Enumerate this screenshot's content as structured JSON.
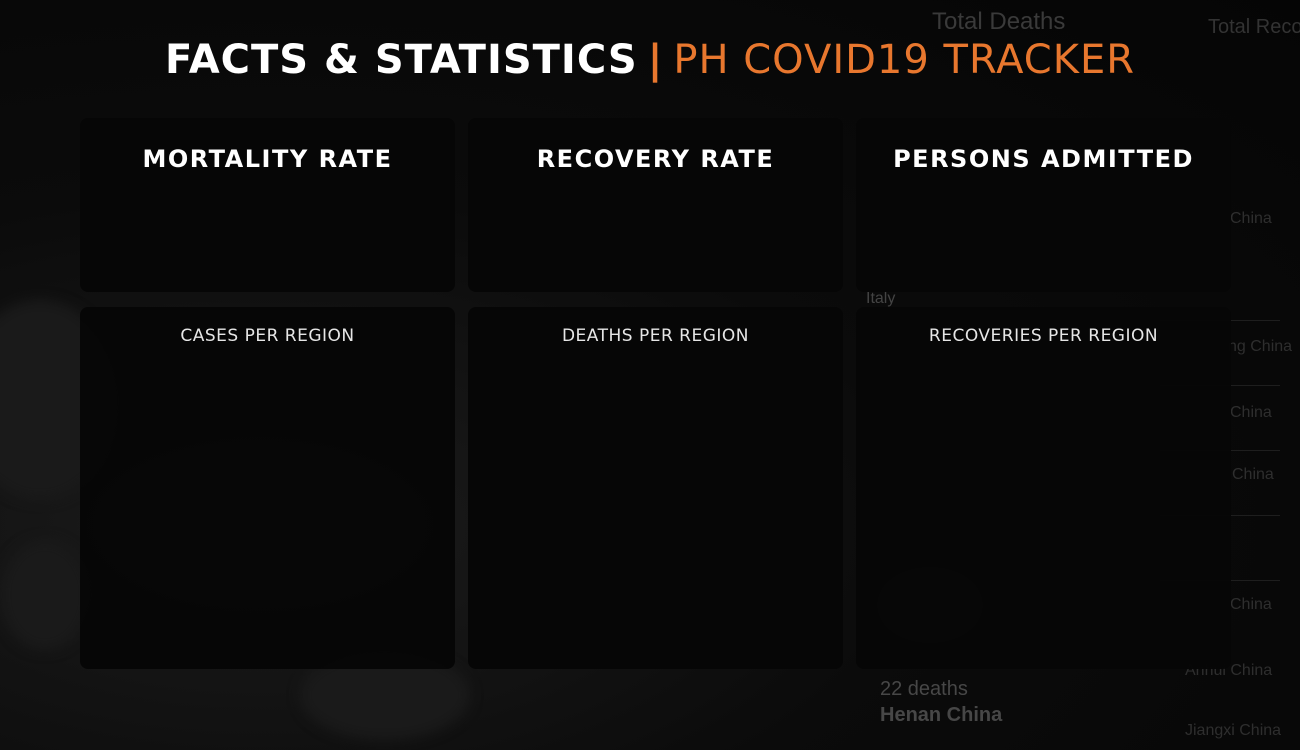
{
  "header": {
    "title_main": "FACTS & STATISTICS",
    "separator": "|",
    "title_sub": "PH COVID19 TRACKER"
  },
  "stats": [
    {
      "title": "MORTALITY RATE",
      "value": ""
    },
    {
      "title": "RECOVERY RATE",
      "value": ""
    },
    {
      "title": "PERSONS ADMITTED",
      "value": ""
    }
  ],
  "regions": [
    {
      "label": "CASES PER REGION"
    },
    {
      "label": "DEATHS PER REGION"
    },
    {
      "label": "RECOVERIES PER REGION"
    }
  ],
  "background": {
    "total_deaths": "Total Deaths",
    "total_recovered": "Total Recov",
    "country_italy": "Italy",
    "deaths_entry": "22 deaths",
    "deaths_place": "Henan China",
    "right_entries": [
      "China",
      "ng China",
      "China",
      "China",
      "China",
      "Anhui China",
      "Jiangxi China"
    ]
  },
  "colors": {
    "accent": "#e8772e",
    "card": "#060606",
    "text": "#ffffff"
  }
}
